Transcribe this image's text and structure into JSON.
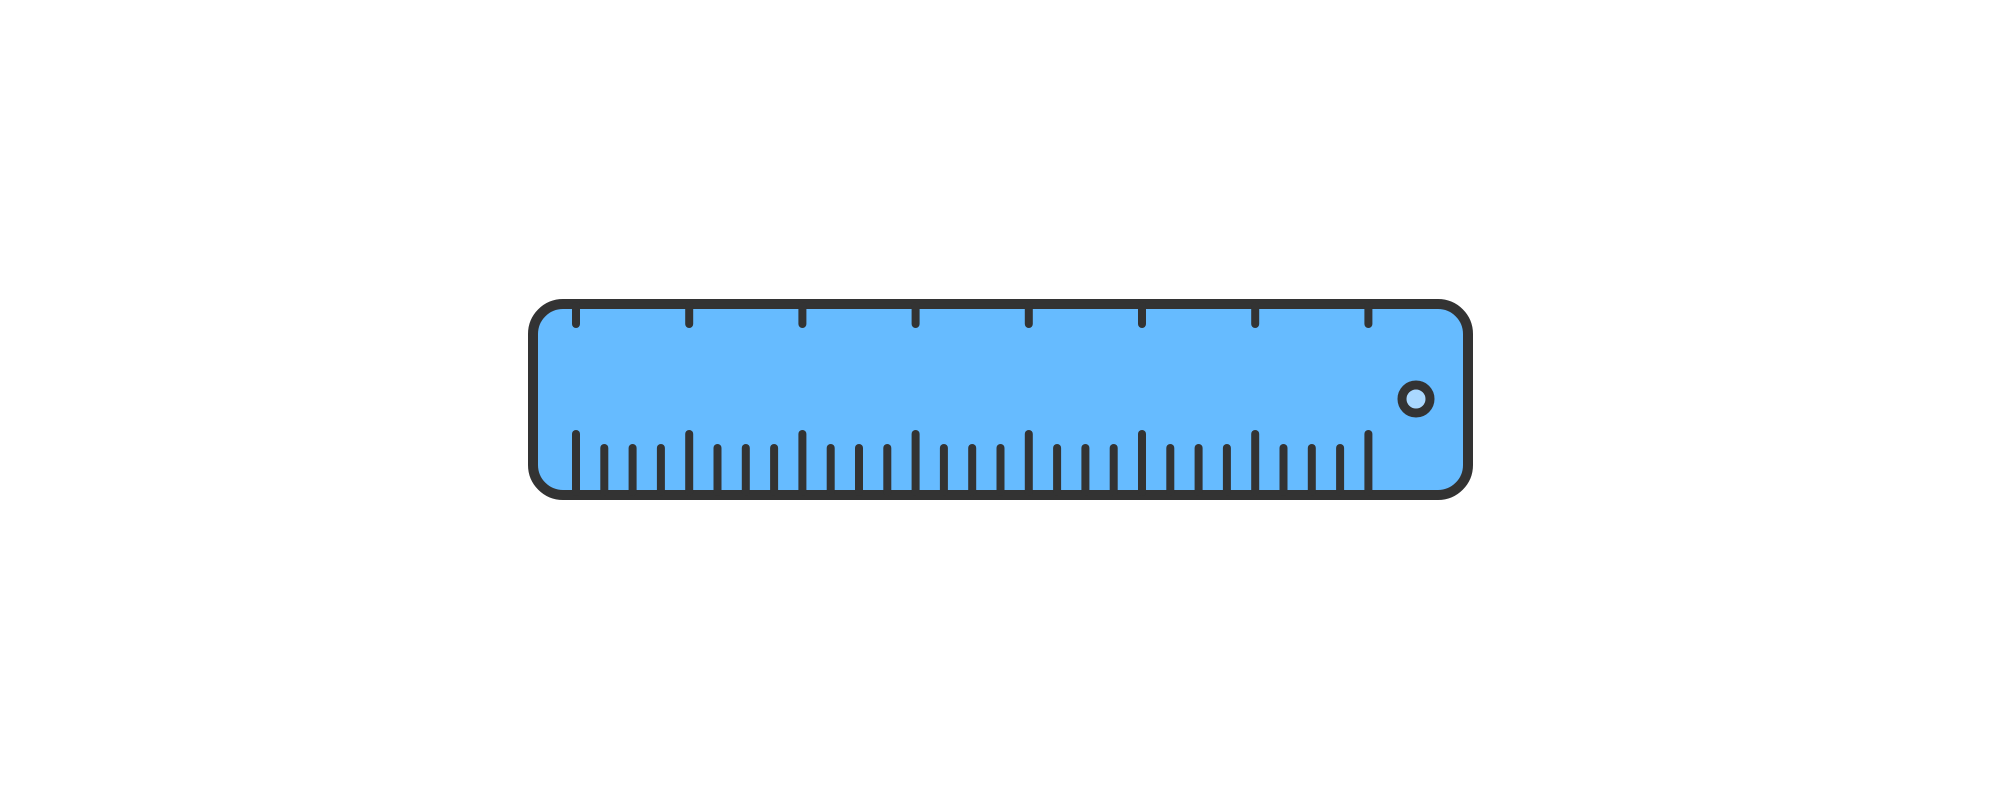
{
  "illustration": {
    "icon": "ruler-icon",
    "colors": {
      "background": "#ffffff",
      "ruler_fill": "#66bbff",
      "outline": "#333333",
      "hole_fill": "#aad8ff"
    },
    "top_ticks": 8,
    "bottom_ticks": 29,
    "bottom_major_every": 4
  }
}
